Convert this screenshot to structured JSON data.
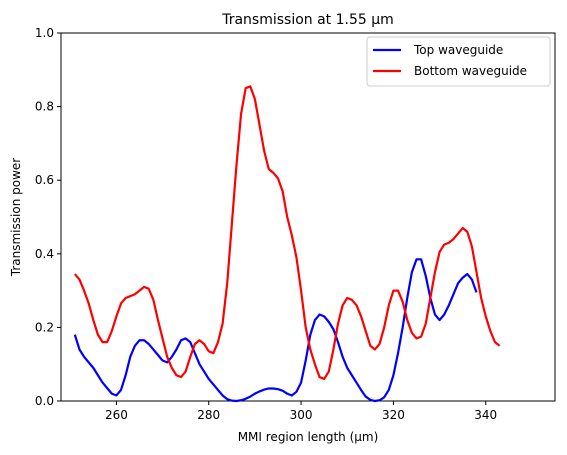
{
  "chart_data": {
    "type": "line",
    "title": "Transmission at 1.55 µm",
    "xlabel": "MMI region length (µm)",
    "ylabel": "Transmission power",
    "xlim": [
      248,
      355
    ],
    "ylim": [
      0,
      1
    ],
    "xticks": [
      260,
      280,
      300,
      320,
      340
    ],
    "yticks": [
      0.0,
      0.2,
      0.4,
      0.6,
      0.8,
      1.0
    ],
    "xtick_labels": [
      "260",
      "280",
      "300",
      "320",
      "340"
    ],
    "ytick_labels": [
      "0.0",
      "0.2",
      "0.4",
      "0.6",
      "0.8",
      "1.0"
    ],
    "grid": false,
    "legend_position": "top-right",
    "series": [
      {
        "name": "Top waveguide",
        "color": "#0000ff",
        "points": [
          [
            251,
            0.18
          ],
          [
            252,
            0.14
          ],
          [
            253,
            0.12
          ],
          [
            254,
            0.105
          ],
          [
            255,
            0.09
          ],
          [
            256,
            0.07
          ],
          [
            257,
            0.05
          ],
          [
            258,
            0.035
          ],
          [
            259,
            0.02
          ],
          [
            260,
            0.015
          ],
          [
            261,
            0.03
          ],
          [
            262,
            0.07
          ],
          [
            263,
            0.12
          ],
          [
            264,
            0.15
          ],
          [
            265,
            0.165
          ],
          [
            266,
            0.165
          ],
          [
            267,
            0.155
          ],
          [
            268,
            0.14
          ],
          [
            269,
            0.125
          ],
          [
            270,
            0.11
          ],
          [
            271,
            0.105
          ],
          [
            272,
            0.12
          ],
          [
            273,
            0.14
          ],
          [
            274,
            0.165
          ],
          [
            275,
            0.17
          ],
          [
            276,
            0.16
          ],
          [
            277,
            0.13
          ],
          [
            278,
            0.1
          ],
          [
            279,
            0.08
          ],
          [
            280,
            0.06
          ],
          [
            281,
            0.045
          ],
          [
            282,
            0.03
          ],
          [
            283,
            0.015
          ],
          [
            284,
            0.005
          ],
          [
            285,
            0.001
          ],
          [
            286,
            0.0
          ],
          [
            287,
            0.002
          ],
          [
            288,
            0.006
          ],
          [
            289,
            0.012
          ],
          [
            290,
            0.02
          ],
          [
            291,
            0.026
          ],
          [
            292,
            0.031
          ],
          [
            293,
            0.034
          ],
          [
            294,
            0.034
          ],
          [
            295,
            0.032
          ],
          [
            296,
            0.028
          ],
          [
            297,
            0.02
          ],
          [
            298,
            0.015
          ],
          [
            299,
            0.025
          ],
          [
            300,
            0.05
          ],
          [
            301,
            0.11
          ],
          [
            302,
            0.18
          ],
          [
            303,
            0.22
          ],
          [
            304,
            0.235
          ],
          [
            305,
            0.23
          ],
          [
            306,
            0.215
          ],
          [
            307,
            0.195
          ],
          [
            308,
            0.16
          ],
          [
            309,
            0.12
          ],
          [
            310,
            0.09
          ],
          [
            311,
            0.07
          ],
          [
            312,
            0.05
          ],
          [
            313,
            0.03
          ],
          [
            314,
            0.012
          ],
          [
            315,
            0.003
          ],
          [
            316,
            0.0
          ],
          [
            317,
            0.002
          ],
          [
            318,
            0.01
          ],
          [
            319,
            0.03
          ],
          [
            320,
            0.07
          ],
          [
            321,
            0.13
          ],
          [
            322,
            0.2
          ],
          [
            323,
            0.28
          ],
          [
            324,
            0.35
          ],
          [
            325,
            0.385
          ],
          [
            326,
            0.385
          ],
          [
            327,
            0.34
          ],
          [
            328,
            0.28
          ],
          [
            329,
            0.235
          ],
          [
            330,
            0.22
          ],
          [
            331,
            0.235
          ],
          [
            332,
            0.26
          ],
          [
            333,
            0.29
          ],
          [
            334,
            0.32
          ],
          [
            335,
            0.335
          ],
          [
            336,
            0.345
          ],
          [
            337,
            0.33
          ],
          [
            338,
            0.295
          ]
        ]
      },
      {
        "name": "Bottom waveguide",
        "color": "#ff0000",
        "points": [
          [
            251,
            0.345
          ],
          [
            252,
            0.33
          ],
          [
            253,
            0.3
          ],
          [
            254,
            0.265
          ],
          [
            255,
            0.22
          ],
          [
            256,
            0.18
          ],
          [
            257,
            0.16
          ],
          [
            258,
            0.16
          ],
          [
            259,
            0.19
          ],
          [
            260,
            0.23
          ],
          [
            261,
            0.265
          ],
          [
            262,
            0.28
          ],
          [
            263,
            0.285
          ],
          [
            264,
            0.29
          ],
          [
            265,
            0.3
          ],
          [
            266,
            0.31
          ],
          [
            267,
            0.305
          ],
          [
            268,
            0.275
          ],
          [
            269,
            0.22
          ],
          [
            270,
            0.17
          ],
          [
            271,
            0.12
          ],
          [
            272,
            0.09
          ],
          [
            273,
            0.07
          ],
          [
            274,
            0.065
          ],
          [
            275,
            0.08
          ],
          [
            276,
            0.12
          ],
          [
            277,
            0.155
          ],
          [
            278,
            0.165
          ],
          [
            279,
            0.155
          ],
          [
            280,
            0.135
          ],
          [
            281,
            0.13
          ],
          [
            282,
            0.16
          ],
          [
            283,
            0.21
          ],
          [
            284,
            0.32
          ],
          [
            285,
            0.48
          ],
          [
            286,
            0.64
          ],
          [
            287,
            0.78
          ],
          [
            288,
            0.85
          ],
          [
            289,
            0.855
          ],
          [
            290,
            0.82
          ],
          [
            291,
            0.75
          ],
          [
            292,
            0.68
          ],
          [
            293,
            0.63
          ],
          [
            294,
            0.62
          ],
          [
            295,
            0.605
          ],
          [
            296,
            0.57
          ],
          [
            297,
            0.5
          ],
          [
            298,
            0.45
          ],
          [
            299,
            0.39
          ],
          [
            300,
            0.3
          ],
          [
            301,
            0.2
          ],
          [
            302,
            0.14
          ],
          [
            303,
            0.1
          ],
          [
            304,
            0.065
          ],
          [
            305,
            0.06
          ],
          [
            306,
            0.08
          ],
          [
            307,
            0.14
          ],
          [
            308,
            0.21
          ],
          [
            309,
            0.26
          ],
          [
            310,
            0.28
          ],
          [
            311,
            0.275
          ],
          [
            312,
            0.26
          ],
          [
            313,
            0.23
          ],
          [
            314,
            0.19
          ],
          [
            315,
            0.15
          ],
          [
            316,
            0.14
          ],
          [
            317,
            0.155
          ],
          [
            318,
            0.2
          ],
          [
            319,
            0.26
          ],
          [
            320,
            0.3
          ],
          [
            321,
            0.3
          ],
          [
            322,
            0.27
          ],
          [
            323,
            0.22
          ],
          [
            324,
            0.185
          ],
          [
            325,
            0.17
          ],
          [
            326,
            0.175
          ],
          [
            327,
            0.21
          ],
          [
            328,
            0.28
          ],
          [
            329,
            0.35
          ],
          [
            330,
            0.405
          ],
          [
            331,
            0.425
          ],
          [
            332,
            0.43
          ],
          [
            333,
            0.44
          ],
          [
            334,
            0.455
          ],
          [
            335,
            0.47
          ],
          [
            336,
            0.46
          ],
          [
            337,
            0.42
          ],
          [
            338,
            0.35
          ],
          [
            339,
            0.28
          ],
          [
            340,
            0.23
          ],
          [
            341,
            0.19
          ],
          [
            342,
            0.16
          ],
          [
            343,
            0.15
          ]
        ]
      }
    ]
  }
}
